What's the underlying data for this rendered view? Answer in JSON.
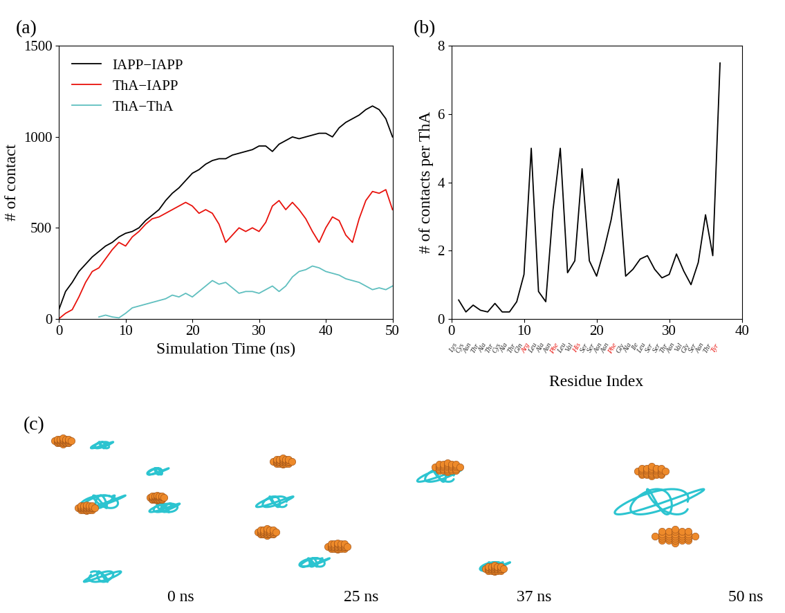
{
  "chart_data": [
    {
      "type": "line",
      "title": "(a)",
      "x_label": "Simulation Time (ns)",
      "y_label": "# of contact",
      "x": [
        0,
        1,
        2,
        3,
        4,
        5,
        6,
        7,
        8,
        9,
        10,
        11,
        12,
        13,
        14,
        15,
        16,
        17,
        18,
        19,
        20,
        21,
        22,
        23,
        24,
        25,
        26,
        27,
        28,
        29,
        30,
        31,
        32,
        33,
        34,
        35,
        36,
        37,
        38,
        39,
        40,
        41,
        42,
        43,
        44,
        45,
        46,
        47,
        48,
        49,
        50
      ],
      "series": [
        {
          "name": "IAPP−IAPP",
          "color": "#000000",
          "values": [
            50,
            150,
            200,
            260,
            300,
            340,
            370,
            400,
            420,
            450,
            470,
            480,
            500,
            540,
            570,
            600,
            650,
            690,
            720,
            760,
            800,
            820,
            850,
            870,
            880,
            880,
            900,
            910,
            920,
            930,
            950,
            950,
            920,
            960,
            980,
            1000,
            990,
            1000,
            1010,
            1020,
            1020,
            1000,
            1050,
            1080,
            1100,
            1120,
            1150,
            1170,
            1150,
            1100,
            1000
          ]
        },
        {
          "name": "ThA−IAPP",
          "color": "#e8120c",
          "values": [
            0,
            30,
            50,
            120,
            200,
            260,
            280,
            330,
            380,
            420,
            400,
            450,
            480,
            520,
            550,
            560,
            580,
            600,
            620,
            640,
            620,
            580,
            600,
            580,
            520,
            420,
            460,
            500,
            480,
            500,
            480,
            530,
            620,
            650,
            600,
            640,
            600,
            550,
            480,
            420,
            500,
            560,
            540,
            460,
            420,
            550,
            650,
            700,
            690,
            710,
            600
          ]
        },
        {
          "name": "ThA−ThA",
          "color": "#5fbfbf",
          "values": [
            null,
            null,
            null,
            null,
            null,
            null,
            10,
            20,
            10,
            5,
            30,
            60,
            70,
            80,
            90,
            100,
            110,
            130,
            120,
            140,
            120,
            150,
            180,
            210,
            190,
            200,
            170,
            140,
            150,
            150,
            140,
            160,
            180,
            150,
            180,
            230,
            260,
            270,
            290,
            280,
            260,
            250,
            240,
            220,
            210,
            200,
            180,
            160,
            170,
            160,
            180
          ]
        }
      ],
      "xlim": [
        0,
        50
      ],
      "xticks": [
        0,
        10,
        20,
        30,
        40,
        50
      ],
      "ylim": [
        0,
        1500
      ],
      "yticks": [
        0,
        500,
        1000,
        1500
      ],
      "legend": "upper left"
    },
    {
      "type": "line",
      "title": "(b)",
      "x_label": "Residue Index",
      "y_label": "# of contacts per ThA",
      "x": [
        1,
        2,
        3,
        4,
        5,
        6,
        7,
        8,
        9,
        10,
        11,
        12,
        13,
        14,
        15,
        16,
        17,
        18,
        19,
        20,
        21,
        22,
        23,
        24,
        25,
        26,
        27,
        28,
        29,
        30,
        31,
        32,
        33,
        34,
        35,
        36,
        37
      ],
      "series": [
        {
          "name": "ThA",
          "color": "#000000",
          "values": [
            0.55,
            0.2,
            0.4,
            0.25,
            0.2,
            0.45,
            0.2,
            0.2,
            0.5,
            1.3,
            5.0,
            0.8,
            0.5,
            3.2,
            5.0,
            1.35,
            1.7,
            4.4,
            1.7,
            1.25,
            2.0,
            2.9,
            4.1,
            1.25,
            1.45,
            1.75,
            1.85,
            1.45,
            1.2,
            1.3,
            1.9,
            1.4,
            1.0,
            1.65,
            3.05,
            1.85,
            7.5
          ]
        }
      ],
      "residues": [
        "Lys",
        "Cys",
        "Asn",
        "Thr",
        "Ala",
        "Thr",
        "Cys",
        "Ala",
        "Thr",
        "Gln",
        "Arg",
        "Leu",
        "Ala",
        "Asn",
        "Phe",
        "Leu",
        "Val",
        "His",
        "Ser",
        "Ser",
        "Asn",
        "Asn",
        "Phe",
        "Gly",
        "Ala",
        "Ile",
        "Leu",
        "Ser",
        "Ser",
        "Thr",
        "Asn",
        "Val",
        "Gly",
        "Ser",
        "Asn",
        "Thr",
        "Tyr"
      ],
      "residue_colors": [
        "#333333",
        "#333333",
        "#333333",
        "#333333",
        "#333333",
        "#333333",
        "#333333",
        "#333333",
        "#333333",
        "#333333",
        "#e8120c",
        "#333333",
        "#333333",
        "#333333",
        "#e8120c",
        "#333333",
        "#333333",
        "#e8120c",
        "#333333",
        "#333333",
        "#333333",
        "#333333",
        "#e8120c",
        "#333333",
        "#333333",
        "#333333",
        "#333333",
        "#333333",
        "#333333",
        "#333333",
        "#333333",
        "#333333",
        "#333333",
        "#333333",
        "#333333",
        "#333333",
        "#e8120c"
      ],
      "xlim": [
        0,
        40
      ],
      "xticks": [
        0,
        10,
        20,
        30,
        40
      ],
      "ylim": [
        0,
        8
      ],
      "yticks": [
        0,
        2,
        4,
        6,
        8
      ]
    }
  ],
  "panel_c": {
    "title": "(c)",
    "snapshots": [
      "0 ns",
      "25 ns",
      "37 ns",
      "50 ns"
    ]
  }
}
